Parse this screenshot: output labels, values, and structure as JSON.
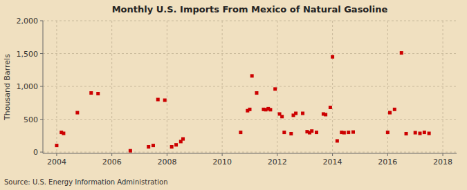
{
  "chart_data": {
    "type": "scatter",
    "title": "Monthly U.S. Imports From Mexico of Natural Gasoline",
    "ylabel": "Thousand Barrels",
    "annotations": [
      "Source: U.S. Energy Information Administration"
    ],
    "color": "#cc0000",
    "marker": "square",
    "grid": true,
    "xlim": [
      2003.5,
      2018.5
    ],
    "ylim": [
      -20,
      2000
    ],
    "xticks": [
      2004,
      2006,
      2008,
      2010,
      2012,
      2014,
      2016,
      2018
    ],
    "yticks": [
      0,
      500,
      {
        "value": 1000,
        "label": "1,000"
      },
      {
        "value": 1500,
        "label": "1,500"
      },
      {
        "value": 2000,
        "label": "2,000"
      }
    ],
    "x": [
      2004.0,
      2004.17,
      2004.25,
      2004.75,
      2005.25,
      2005.5,
      2006.67,
      2007.33,
      2007.5,
      2007.67,
      2007.92,
      2008.17,
      2008.33,
      2008.5,
      2008.58,
      2010.67,
      2010.92,
      2011.0,
      2011.08,
      2011.25,
      2011.5,
      2011.58,
      2011.67,
      2011.75,
      2011.92,
      2012.08,
      2012.17,
      2012.25,
      2012.5,
      2012.58,
      2012.67,
      2012.92,
      2013.08,
      2013.17,
      2013.25,
      2013.42,
      2013.67,
      2013.75,
      2013.92,
      2014.0,
      2014.17,
      2014.33,
      2014.42,
      2014.58,
      2014.75,
      2016.0,
      2016.08,
      2016.25,
      2016.5,
      2016.67,
      2017.0,
      2017.17,
      2017.33,
      2017.5
    ],
    "values": [
      100,
      300,
      285,
      600,
      900,
      890,
      20,
      80,
      100,
      800,
      790,
      80,
      110,
      160,
      200,
      300,
      630,
      650,
      1160,
      900,
      650,
      645,
      660,
      645,
      960,
      580,
      540,
      300,
      280,
      560,
      590,
      590,
      310,
      295,
      320,
      300,
      580,
      570,
      680,
      1450,
      170,
      300,
      295,
      300,
      305,
      300,
      600,
      650,
      1510,
      280,
      295,
      285,
      300,
      285
    ]
  }
}
